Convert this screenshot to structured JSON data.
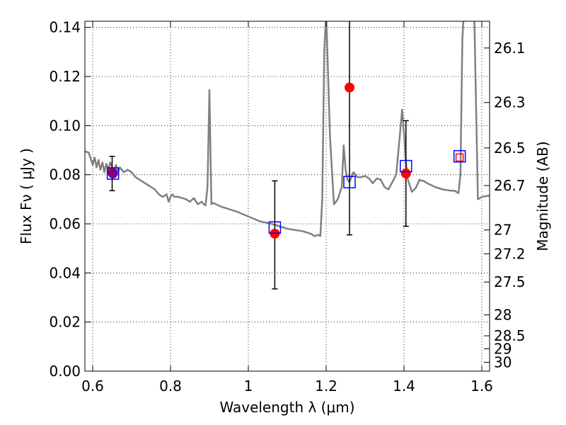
{
  "chart_data": {
    "type": "scatter",
    "xlabel": "Wavelength  λ (μm)",
    "ylabel": "Flux  Fν ( μJy )",
    "y2label": "Magnitude (AB)",
    "xlim": [
      0.58,
      1.62
    ],
    "ylim": [
      0.0,
      0.1425
    ],
    "grid": true,
    "x_ticks": [
      {
        "value": 0.6,
        "label": "0.6"
      },
      {
        "value": 0.8,
        "label": "0.8"
      },
      {
        "value": 1.0,
        "label": "1"
      },
      {
        "value": 1.2,
        "label": "1.2"
      },
      {
        "value": 1.4,
        "label": "1.4"
      },
      {
        "value": 1.6,
        "label": "1.6"
      }
    ],
    "y_ticks": [
      {
        "value": 0.0,
        "label": "0.00"
      },
      {
        "value": 0.02,
        "label": "0.02"
      },
      {
        "value": 0.04,
        "label": "0.04"
      },
      {
        "value": 0.06,
        "label": "0.06"
      },
      {
        "value": 0.08,
        "label": "0.08"
      },
      {
        "value": 0.1,
        "label": "0.10"
      },
      {
        "value": 0.12,
        "label": "0.12"
      },
      {
        "value": 0.14,
        "label": "0.14"
      }
    ],
    "y2_ticks": [
      {
        "flux": 0.1316,
        "label": "26.1"
      },
      {
        "flux": 0.1094,
        "label": "26.3"
      },
      {
        "flux": 0.0909,
        "label": "26.5"
      },
      {
        "flux": 0.0756,
        "label": "26.7"
      },
      {
        "flux": 0.0575,
        "label": "27"
      },
      {
        "flux": 0.0478,
        "label": "27.2"
      },
      {
        "flux": 0.0363,
        "label": "27.5"
      },
      {
        "flux": 0.0229,
        "label": "28"
      },
      {
        "flux": 0.0144,
        "label": "28.5"
      },
      {
        "flux": 0.0091,
        "label": "29"
      },
      {
        "flux": 0.0036,
        "label": "30"
      }
    ],
    "model_spectrum": {
      "color": "#808080",
      "x": [
        0.58,
        0.59,
        0.6,
        0.605,
        0.61,
        0.615,
        0.62,
        0.625,
        0.63,
        0.635,
        0.64,
        0.645,
        0.65,
        0.655,
        0.66,
        0.665,
        0.67,
        0.675,
        0.68,
        0.69,
        0.7,
        0.71,
        0.72,
        0.73,
        0.74,
        0.75,
        0.76,
        0.77,
        0.78,
        0.79,
        0.795,
        0.8,
        0.805,
        0.81,
        0.82,
        0.83,
        0.84,
        0.85,
        0.86,
        0.87,
        0.88,
        0.885,
        0.89,
        0.895,
        0.9,
        0.905,
        0.91,
        0.93,
        0.95,
        0.97,
        1.0,
        1.03,
        1.06,
        1.08,
        1.1,
        1.12,
        1.14,
        1.16,
        1.17,
        1.18,
        1.185,
        1.19,
        1.195,
        1.2,
        1.205,
        1.21,
        1.22,
        1.23,
        1.24,
        1.245,
        1.25,
        1.255,
        1.26,
        1.27,
        1.28,
        1.29,
        1.3,
        1.31,
        1.32,
        1.33,
        1.34,
        1.35,
        1.36,
        1.37,
        1.38,
        1.39,
        1.395,
        1.4,
        1.405,
        1.41,
        1.42,
        1.43,
        1.44,
        1.445,
        1.45,
        1.46,
        1.48,
        1.5,
        1.52,
        1.53,
        1.54,
        1.545,
        1.55,
        1.555,
        1.56,
        1.57,
        1.58,
        1.59,
        1.6,
        1.62
      ],
      "y": [
        0.0895,
        0.089,
        0.084,
        0.087,
        0.083,
        0.086,
        0.082,
        0.085,
        0.081,
        0.0845,
        0.082,
        0.085,
        0.083,
        0.082,
        0.084,
        0.081,
        0.083,
        0.082,
        0.081,
        0.082,
        0.081,
        0.079,
        0.078,
        0.077,
        0.076,
        0.075,
        0.074,
        0.072,
        0.071,
        0.072,
        0.069,
        0.071,
        0.072,
        0.071,
        0.071,
        0.0705,
        0.07,
        0.069,
        0.0705,
        0.068,
        0.069,
        0.068,
        0.0675,
        0.075,
        0.1145,
        0.068,
        0.0685,
        0.067,
        0.066,
        0.065,
        0.063,
        0.061,
        0.06,
        0.059,
        0.058,
        0.0575,
        0.057,
        0.056,
        0.055,
        0.0555,
        0.055,
        0.07,
        0.13,
        0.146,
        0.12,
        0.095,
        0.068,
        0.07,
        0.075,
        0.092,
        0.082,
        0.078,
        0.077,
        0.081,
        0.079,
        0.079,
        0.0795,
        0.0785,
        0.0765,
        0.0785,
        0.078,
        0.075,
        0.074,
        0.077,
        0.08,
        0.097,
        0.1065,
        0.097,
        0.085,
        0.078,
        0.073,
        0.0745,
        0.078,
        0.0775,
        0.0775,
        0.0765,
        0.075,
        0.074,
        0.0735,
        0.0735,
        0.0725,
        0.08,
        0.135,
        0.15,
        0.15,
        0.15,
        0.15,
        0.07,
        0.071,
        0.0715
      ]
    },
    "series": [
      {
        "color": "#ff0000",
        "marker": "circle",
        "points": [
          {
            "x": 0.65,
            "y": 0.081,
            "yerr_low": 0.0735,
            "yerr_high": 0.0875
          },
          {
            "x": 1.068,
            "y": 0.056,
            "yerr_low": 0.0335,
            "yerr_high": 0.0775
          },
          {
            "x": 1.26,
            "y": 0.1155,
            "yerr_low": 0.0555,
            "yerr_high": 0.16
          },
          {
            "x": 1.405,
            "y": 0.0805,
            "yerr_low": 0.059,
            "yerr_high": 0.102
          }
        ]
      },
      {
        "color": "#0000ff",
        "marker": "square-open",
        "points": [
          {
            "x": 0.652,
            "y": 0.0805
          },
          {
            "x": 1.068,
            "y": 0.0585
          },
          {
            "x": 1.26,
            "y": 0.077
          },
          {
            "x": 1.405,
            "y": 0.0835
          },
          {
            "x": 1.543,
            "y": 0.0875
          }
        ]
      },
      {
        "color": "#ff0000",
        "marker": "square-open",
        "points": [
          {
            "x": 1.543,
            "y": 0.087
          }
        ]
      },
      {
        "color": "#800080",
        "marker": "circle",
        "points": [
          {
            "x": 0.652,
            "y": 0.0805
          }
        ]
      }
    ]
  }
}
